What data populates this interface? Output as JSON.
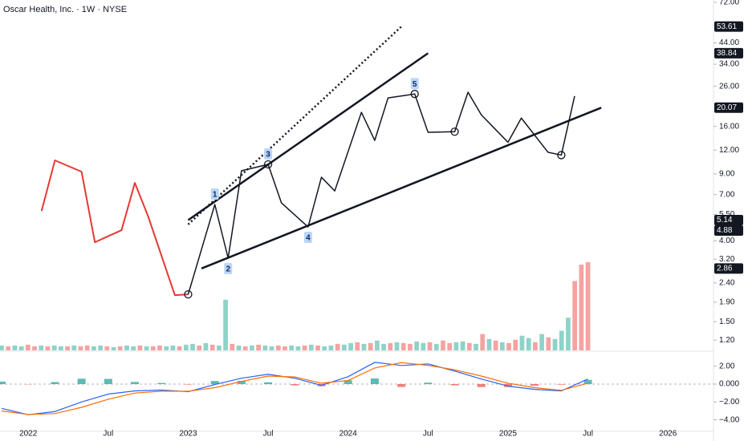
{
  "chart_data": {
    "type": "line",
    "title": "Oscar Health, Inc. · 1W · NYSE",
    "log": true,
    "xlim": [
      "2021-11",
      "2026-04"
    ],
    "ylim": [
      1.06,
      74
    ],
    "xticks": [
      {
        "value": "2022-01",
        "label": "2022"
      },
      {
        "value": "2022-07",
        "label": "Jul"
      },
      {
        "value": "2023-01",
        "label": "2023"
      },
      {
        "value": "2023-07",
        "label": "Jul"
      },
      {
        "value": "2024-01",
        "label": "2024"
      },
      {
        "value": "2024-07",
        "label": "Jul"
      },
      {
        "value": "2025-01",
        "label": "2025"
      },
      {
        "value": "2025-07",
        "label": "Jul"
      },
      {
        "value": "2026-01",
        "label": "2026"
      }
    ],
    "yticks": [
      {
        "value": 72,
        "label": "72.00"
      },
      {
        "value": 44,
        "label": "44.00"
      },
      {
        "value": 34,
        "label": "34.00"
      },
      {
        "value": 26,
        "label": "26.00"
      },
      {
        "value": 16,
        "label": "16.00"
      },
      {
        "value": 12,
        "label": "12.00"
      },
      {
        "value": 9,
        "label": "9.00"
      },
      {
        "value": 7,
        "label": "7.00"
      },
      {
        "value": 5.5,
        "label": "5.50"
      },
      {
        "value": 4,
        "label": "4.00"
      },
      {
        "value": 3.2,
        "label": "3.20"
      },
      {
        "value": 2.4,
        "label": "2.40"
      },
      {
        "value": 1.9,
        "label": "1.90"
      },
      {
        "value": 1.5,
        "label": "1.50"
      },
      {
        "value": 1.2,
        "label": "1.20"
      }
    ],
    "x": [
      "2022-02",
      "2022-03",
      "2022-05",
      "2022-06",
      "2022-08",
      "2022-09",
      "2022-10",
      "2022-12",
      "2023-01",
      "2023-03",
      "2023-04",
      "2023-05",
      "2023-07",
      "2023-08",
      "2023-10",
      "2023-11",
      "2023-12",
      "2024-02",
      "2024-03",
      "2024-04",
      "2024-06",
      "2024-07",
      "2024-09",
      "2024-10",
      "2024-11",
      "2025-01",
      "2025-02",
      "2025-04",
      "2025-05",
      "2025-06"
    ],
    "series": [
      {
        "color": "#e53935",
        "values": [
          5.74,
          10.6,
          9.24,
          3.93,
          4.55,
          8.07,
          5.37,
          2.07,
          2.09,
          null,
          null,
          null,
          null,
          null,
          null,
          null,
          null,
          null,
          null,
          null,
          null,
          null,
          null,
          null,
          null,
          null,
          null,
          null,
          null,
          null
        ]
      },
      {
        "color": "#131722",
        "values": [
          null,
          null,
          null,
          null,
          null,
          null,
          null,
          null,
          2.09,
          6.21,
          3.24,
          9.34,
          10.1,
          6.33,
          4.73,
          8.64,
          7.32,
          18.97,
          13.5,
          22.6,
          23.7,
          14.9,
          15.0,
          24.2,
          18.4,
          13.2,
          17.7,
          11.7,
          11.3,
          23.1
        ]
      }
    ],
    "markers": [
      "2023-01",
      "2023-07",
      "2024-06",
      "2024-09",
      "2025-05"
    ],
    "annotations": [
      {
        "label": "1",
        "x": "2023-03",
        "position": "above"
      },
      {
        "label": "2",
        "x": "2023-04",
        "position": "below"
      },
      {
        "label": "3",
        "x": "2023-07",
        "position": "above"
      },
      {
        "label": "4",
        "x": "2023-10",
        "position": "below"
      },
      {
        "label": "5",
        "x": "2024-06",
        "position": "above"
      }
    ],
    "trendlines": [
      {
        "style": "dotted",
        "start": {
          "x": "2023-01",
          "y": 4.88
        },
        "end": {
          "x": "2024-05",
          "y": 53.61
        }
      },
      {
        "style": "solid",
        "start": {
          "x": "2023-01",
          "y": 5.14
        },
        "end": {
          "x": "2024-07",
          "y": 38.84
        }
      },
      {
        "style": "solid",
        "start": {
          "x": "2023-02",
          "y": 2.86
        },
        "end": {
          "x": "2025-08",
          "y": 20.07
        }
      }
    ],
    "volume": {
      "x_range": [
        "2021-11",
        "2025-07"
      ],
      "up_color": "#8fd3c8",
      "down_color": "#f5a3a1",
      "values": [
        6,
        5,
        6,
        5,
        7,
        5,
        6,
        5,
        6,
        5,
        5,
        6,
        5,
        6,
        5,
        6,
        5,
        4,
        5,
        6,
        5,
        6,
        5,
        5,
        6,
        5,
        6,
        5,
        7,
        8,
        6,
        9,
        7,
        6,
        62,
        8,
        6,
        5,
        6,
        7,
        6,
        5,
        6,
        5,
        6,
        5,
        6,
        7,
        6,
        5,
        6,
        8,
        7,
        9,
        10,
        8,
        9,
        12,
        8,
        9,
        10,
        9,
        8,
        11,
        9,
        10,
        8,
        12,
        9,
        10,
        11,
        9,
        8,
        20,
        14,
        12,
        10,
        9,
        13,
        18,
        15,
        10,
        20,
        16,
        14,
        24,
        40,
        85,
        105,
        108
      ],
      "up": [
        true,
        false,
        true,
        true,
        false,
        false,
        true,
        false,
        true,
        true,
        false,
        true,
        false,
        false,
        true,
        true,
        false,
        true,
        false,
        true,
        true,
        false,
        true,
        false,
        false,
        true,
        true,
        false,
        true,
        true,
        false,
        true,
        false,
        true,
        true,
        false,
        true,
        false,
        true,
        false,
        true,
        true,
        false,
        false,
        true,
        true,
        false,
        true,
        false,
        true,
        true,
        false,
        true,
        true,
        false,
        true,
        false,
        true,
        true,
        false,
        true,
        false,
        false,
        true,
        true,
        false,
        true,
        false,
        false,
        true,
        true,
        false,
        true,
        false,
        true,
        false,
        true,
        false,
        false,
        true,
        true,
        false,
        true,
        false,
        true,
        true,
        true,
        false,
        false,
        false
      ]
    },
    "macd": {
      "ylim": [
        -5.2,
        3.5
      ],
      "yticks": [
        {
          "value": 2,
          "label": "2.00"
        },
        {
          "value": 0,
          "label": "0.000"
        },
        {
          "value": -2,
          "label": "−2.00"
        },
        {
          "value": -4,
          "label": "−4.00"
        }
      ],
      "x": [
        "2021-11",
        "2022-01",
        "2022-03",
        "2022-05",
        "2022-07",
        "2022-09",
        "2022-11",
        "2023-01",
        "2023-03",
        "2023-05",
        "2023-07",
        "2023-09",
        "2023-11",
        "2024-01",
        "2024-03",
        "2024-05",
        "2024-07",
        "2024-09",
        "2024-11",
        "2025-01",
        "2025-03",
        "2025-05",
        "2025-07"
      ],
      "macd_color": "#2962ff",
      "signal_color": "#ff6d00",
      "pos_color": "#26a69a",
      "neg_color": "#ef5350",
      "macd": [
        -2.72,
        -3.43,
        -3.07,
        -2.0,
        -1.12,
        -0.76,
        -0.67,
        -0.85,
        -0.05,
        0.66,
        1.1,
        0.66,
        -0.14,
        0.83,
        2.43,
        2.08,
        2.26,
        1.46,
        0.57,
        -0.23,
        -0.59,
        -0.76,
        0.57
      ],
      "signal": [
        -3.0,
        -3.4,
        -3.3,
        -2.6,
        -1.7,
        -1.0,
        -0.8,
        -0.8,
        -0.4,
        0.3,
        0.9,
        0.8,
        0.1,
        0.4,
        1.8,
        2.4,
        2.1,
        1.6,
        0.9,
        0.1,
        -0.4,
        -0.7,
        0.1
      ],
      "histogram": [
        0.28,
        -0.03,
        0.23,
        0.6,
        0.58,
        0.24,
        0.13,
        -0.05,
        0.35,
        0.36,
        0.2,
        -0.14,
        -0.24,
        0.43,
        0.63,
        -0.32,
        0.16,
        -0.14,
        -0.33,
        -0.33,
        -0.19,
        -0.06,
        0.47
      ]
    }
  }
}
